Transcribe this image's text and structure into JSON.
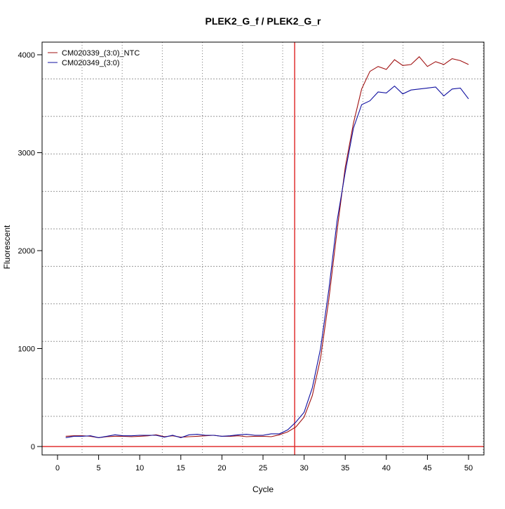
{
  "chart_data": {
    "type": "line",
    "title": "PLEK2_G_f / PLEK2_G_r",
    "xlabel": "Cycle",
    "ylabel": "Fluorescent",
    "xlim": [
      -2,
      52
    ],
    "ylim": [
      -80,
      4100
    ],
    "x_ticks": [
      0,
      5,
      10,
      15,
      20,
      25,
      30,
      35,
      40,
      45,
      50
    ],
    "y_ticks": [
      0,
      1000,
      2000,
      3000,
      4000
    ],
    "grid": true,
    "legend_position": "top-left",
    "threshold_y": 0,
    "threshold_color": "#e03030",
    "cycle_marker_x": 28.85,
    "cycle_marker_color": "#e03030",
    "x": [
      1,
      2,
      3,
      4,
      5,
      6,
      7,
      8,
      9,
      10,
      11,
      12,
      13,
      14,
      15,
      16,
      17,
      18,
      19,
      20,
      21,
      22,
      23,
      24,
      25,
      26,
      27,
      28,
      29,
      30,
      31,
      32,
      33,
      34,
      35,
      36,
      37,
      38,
      39,
      40,
      41,
      42,
      43,
      44,
      45,
      46,
      47,
      48,
      49,
      50
    ],
    "series": [
      {
        "name": "CM020339_(3:0)_NTC",
        "color": "#a01010",
        "values": [
          105,
          110,
          110,
          105,
          90,
          100,
          105,
          105,
          100,
          105,
          110,
          120,
          100,
          110,
          95,
          100,
          105,
          110,
          115,
          105,
          105,
          110,
          100,
          105,
          105,
          100,
          120,
          150,
          200,
          300,
          520,
          900,
          1500,
          2200,
          2850,
          3300,
          3650,
          3830,
          3880,
          3850,
          3950,
          3890,
          3900,
          3980,
          3880,
          3930,
          3900,
          3960,
          3940,
          3900
        ]
      },
      {
        "name": "CM020349_(3:0)",
        "color": "#1010a0",
        "values": [
          90,
          105,
          105,
          110,
          90,
          105,
          120,
          110,
          110,
          115,
          115,
          115,
          95,
          115,
          90,
          120,
          125,
          115,
          115,
          105,
          110,
          120,
          125,
          115,
          115,
          130,
          130,
          170,
          250,
          350,
          600,
          1000,
          1600,
          2300,
          2800,
          3250,
          3490,
          3530,
          3620,
          3610,
          3680,
          3600,
          3640,
          3650,
          3660,
          3670,
          3580,
          3650,
          3660,
          3550
        ]
      }
    ]
  }
}
